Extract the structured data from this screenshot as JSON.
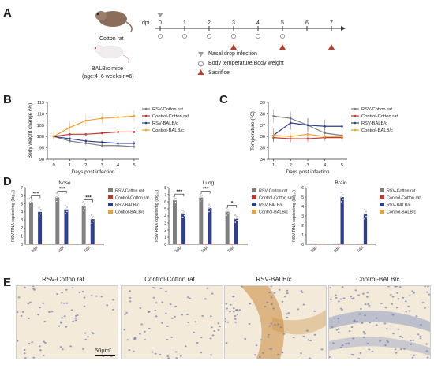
{
  "panels": {
    "a": "A",
    "b": "B",
    "c": "C",
    "d": "D",
    "e": "E"
  },
  "panel_a": {
    "cotton_rat": "Cotton rat",
    "balbc": "BALB/c mice",
    "age_note": "(age:4~6 weeks  n=6)",
    "dpi_label": "dpi",
    "days": [
      "0",
      "1",
      "2",
      "3",
      "4",
      "5",
      "6",
      "7"
    ],
    "legend": {
      "nasal": "Nasal drop infection",
      "body": "Body temperature/Body weight",
      "sacrifice": "Sacrifice"
    }
  },
  "panel_b": {
    "ylabel": "Body weight change (%)",
    "xlabel": "Days post infection",
    "yticks": [
      "90",
      "95",
      "100",
      "105",
      "110",
      "115"
    ],
    "xticks": [
      "0",
      "1",
      "2",
      "3",
      "4",
      "5"
    ],
    "legend": [
      "RSV-Cotton rat",
      "Control-Cotton rat",
      "RSV-BALB/c",
      "Control-BALB/c"
    ]
  },
  "panel_c": {
    "ylabel": "Temperature (°C)",
    "xlabel": "Days post infection",
    "yticks": [
      "34",
      "35",
      "36",
      "37",
      "38",
      "39"
    ],
    "xticks": [
      "1",
      "2",
      "3",
      "4",
      "5"
    ],
    "legend": [
      "RSV-Cotton rat",
      "Control-Cotton rat",
      "RSV-BALB/c",
      "Control-BALB/c"
    ]
  },
  "panel_d": {
    "ylabel": "RSV RNA copies/mg (log₁₀)",
    "nose_title": "Nose",
    "lung_title": "Lung",
    "brain_title": "Brain",
    "groups": [
      "3dpi",
      "5dpi",
      "7dpi"
    ],
    "stars": {
      "nose": [
        "***",
        "***",
        "***"
      ],
      "lung": [
        "***",
        "***",
        "*"
      ]
    },
    "legend": [
      "RSV-Cotton rat",
      "Control-Cotton rat",
      "RSV-BALB/c",
      "Control-BALB/c"
    ],
    "yticks_nose": [
      "0",
      "1",
      "2",
      "3",
      "4",
      "5",
      "6",
      "7"
    ],
    "yticks_lung": [
      "0",
      "1",
      "2",
      "3",
      "4",
      "5",
      "6",
      "7",
      "8"
    ],
    "yticks_brain": [
      "0",
      "1",
      "2",
      "3",
      "4",
      "5",
      "6"
    ]
  },
  "panel_e": {
    "titles": [
      "RSV-Cotton rat",
      "Control-Cotton rat",
      "RSV-BALB/c",
      "Control-BALB/c"
    ],
    "scale": "50μm"
  },
  "colors": {
    "rsv_cotton": "#7f7f7f",
    "ctrl_cotton": "#c0392b",
    "rsv_balb": "#2e3f8f",
    "ctrl_balb": "#f0a030",
    "tissue_bg": "#f3ead9",
    "nuclei": "#6d7fb0",
    "stain": "#c8893a"
  },
  "chart_data": [
    {
      "type": "line",
      "title": "",
      "xlabel": "Days post infection",
      "ylabel": "Body weight change (%)",
      "x": [
        0,
        1,
        2,
        3,
        4,
        5
      ],
      "ylim": [
        90,
        115
      ],
      "series": [
        {
          "name": "RSV-Cotton rat",
          "values": [
            100,
            98,
            97,
            96,
            96,
            95.5
          ]
        },
        {
          "name": "Control-Cotton rat",
          "values": [
            100,
            101,
            101,
            101.5,
            102,
            102
          ]
        },
        {
          "name": "RSV-BALB/c",
          "values": [
            100,
            99,
            98,
            97.5,
            97,
            97
          ]
        },
        {
          "name": "Control-BALB/c",
          "values": [
            100,
            104,
            107,
            108,
            108.5,
            109
          ]
        }
      ]
    },
    {
      "type": "line",
      "title": "",
      "xlabel": "Days post infection",
      "ylabel": "Temperature (°C)",
      "x": [
        1,
        2,
        3,
        4,
        5
      ],
      "ylim": [
        34,
        39
      ],
      "series": [
        {
          "name": "RSV-Cotton rat",
          "values": [
            37.8,
            37.6,
            37.0,
            36.3,
            36.1
          ]
        },
        {
          "name": "Control-Cotton rat",
          "values": [
            35.9,
            35.8,
            35.8,
            35.9,
            35.9
          ]
        },
        {
          "name": "RSV-BALB/c",
          "values": [
            36.1,
            37.2,
            37.0,
            36.9,
            36.9
          ]
        },
        {
          "name": "Control-BALB/c",
          "values": [
            36.1,
            36.0,
            36.2,
            36.0,
            36.0
          ]
        }
      ]
    },
    {
      "type": "bar",
      "title": "Nose",
      "categories": [
        "3dpi",
        "5dpi",
        "7dpi"
      ],
      "ylim": [
        0,
        7
      ],
      "series": [
        {
          "name": "RSV-Cotton rat",
          "values": [
            5.2,
            5.8,
            4.7
          ]
        },
        {
          "name": "Control-Cotton rat",
          "values": [
            0,
            0,
            0
          ]
        },
        {
          "name": "RSV-BALB/c",
          "values": [
            4.0,
            4.3,
            3.1
          ]
        },
        {
          "name": "Control-BALB/c",
          "values": [
            0,
            0,
            0
          ]
        }
      ]
    },
    {
      "type": "bar",
      "title": "Lung",
      "categories": [
        "3dpi",
        "5dpi",
        "7dpi"
      ],
      "ylim": [
        0,
        8
      ],
      "series": [
        {
          "name": "RSV-Cotton rat",
          "values": [
            6.2,
            6.6,
            4.6
          ]
        },
        {
          "name": "Control-Cotton rat",
          "values": [
            0,
            0,
            0
          ]
        },
        {
          "name": "RSV-BALB/c",
          "values": [
            4.3,
            5.1,
            3.6
          ]
        },
        {
          "name": "Control-BALB/c",
          "values": [
            0,
            0,
            0
          ]
        }
      ]
    },
    {
      "type": "bar",
      "title": "Brain",
      "categories": [
        "3dpi",
        "5dpi",
        "7dpi"
      ],
      "ylim": [
        0,
        6
      ],
      "series": [
        {
          "name": "RSV-Cotton rat",
          "values": [
            0,
            0,
            0
          ]
        },
        {
          "name": "Control-Cotton rat",
          "values": [
            0,
            0,
            0
          ]
        },
        {
          "name": "RSV-BALB/c",
          "values": [
            0,
            5.0,
            3.2
          ]
        },
        {
          "name": "Control-BALB/c",
          "values": [
            0,
            0,
            0
          ]
        }
      ]
    }
  ]
}
